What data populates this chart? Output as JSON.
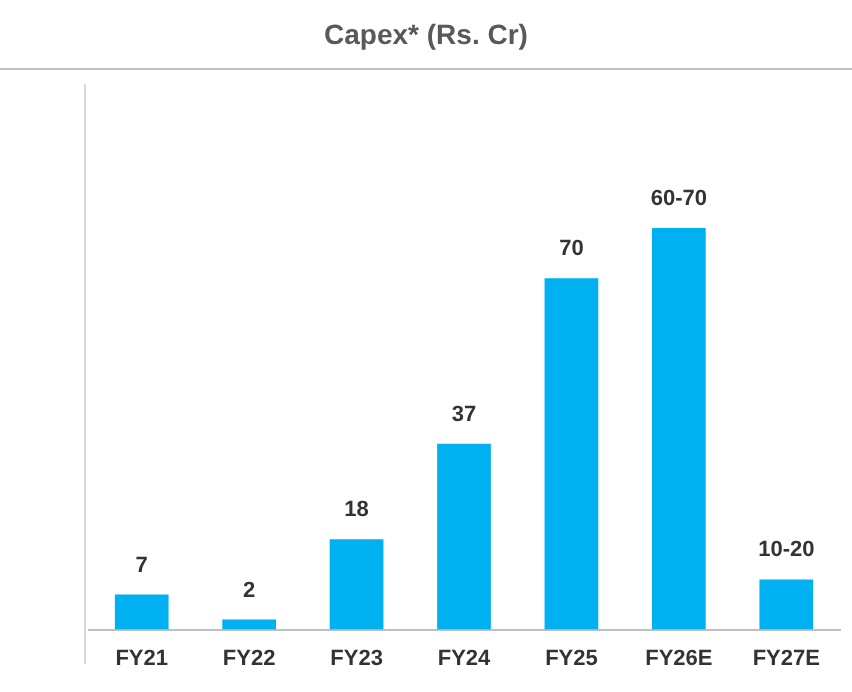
{
  "chart_data": {
    "type": "bar",
    "title": "Capex* (Rs. Cr)",
    "categories": [
      "FY21",
      "FY22",
      "FY23",
      "FY24",
      "FY25",
      "FY26E",
      "FY27E"
    ],
    "values": [
      7,
      2,
      18,
      37,
      70,
      80,
      10
    ],
    "value_labels": [
      "7",
      "2",
      "18",
      "37",
      "70",
      "60-70",
      "10-20"
    ],
    "color": "#00b0f0",
    "tick_labels": "x",
    "grid": false,
    "legend": false
  }
}
